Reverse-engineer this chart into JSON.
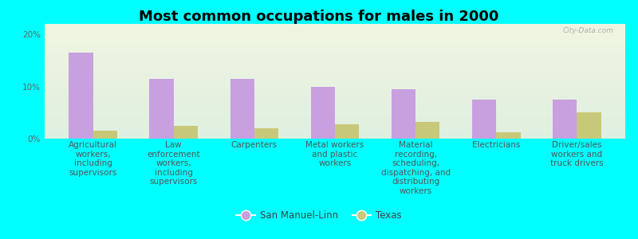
{
  "title": "Most common occupations for males in 2000",
  "categories": [
    "Agricultural\nworkers,\nincluding\nsupervisors",
    "Law\nenforcement\nworkers,\nincluding\nsupervisors",
    "Carpenters",
    "Metal workers\nand plastic\nworkers",
    "Material\nrecording,\nscheduling,\ndispatching, and\ndistributing\nworkers",
    "Electricians",
    "Driver/sales\nworkers and\ntruck drivers"
  ],
  "san_manuel_values": [
    16.5,
    11.5,
    11.5,
    10.0,
    9.5,
    7.5,
    7.5
  ],
  "texas_values": [
    1.5,
    2.5,
    2.0,
    2.8,
    3.2,
    1.2,
    5.0
  ],
  "san_manuel_color": "#c8a0e0",
  "texas_color": "#c8c87a",
  "background_color": "#00ffff",
  "plot_bg_top": "#f0f5e0",
  "plot_bg_bottom": "#e0f0e0",
  "ylim": [
    0,
    22
  ],
  "yticks": [
    0,
    10,
    20
  ],
  "ytick_labels": [
    "0%",
    "10%",
    "20%"
  ],
  "legend_labels": [
    "San Manuel-Linn",
    "Texas"
  ],
  "bar_width": 0.3,
  "title_fontsize": 13,
  "tick_fontsize": 7.5,
  "legend_fontsize": 8.5
}
